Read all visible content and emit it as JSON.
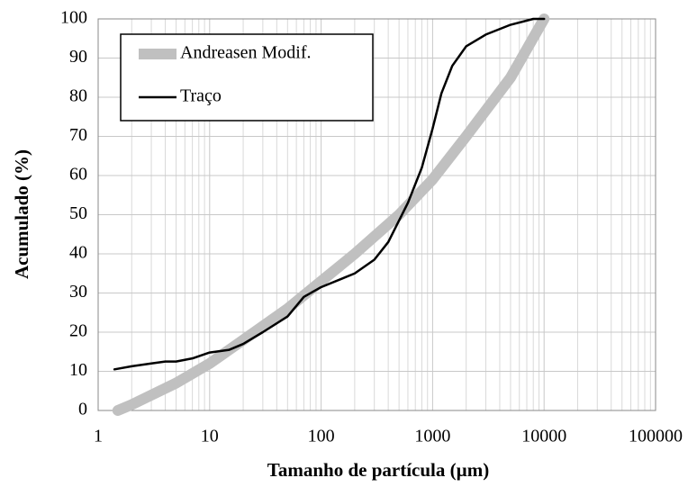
{
  "chart_data": {
    "type": "line",
    "xlabel": "Tamanho  de partícula (µm)",
    "ylabel": "Acumulado (%)",
    "xscale": "log",
    "xlim": [
      1,
      100000
    ],
    "xticks": [
      1,
      10,
      100,
      1000,
      10000,
      100000
    ],
    "ylim": [
      0,
      100
    ],
    "yticks": [
      0,
      10,
      20,
      30,
      40,
      50,
      60,
      70,
      80,
      90,
      100
    ],
    "grid": true,
    "minor_grid": true,
    "legend": "upper left",
    "series": [
      {
        "name": "Andreasen Modif.",
        "color": "#c0c0c0",
        "x": [
          1.5,
          2,
          5,
          10,
          20,
          50,
          100,
          200,
          500,
          1000,
          2000,
          5000,
          10000
        ],
        "values": [
          0,
          1.5,
          7,
          12,
          18,
          26,
          33,
          40,
          50,
          59,
          70,
          85,
          100
        ]
      },
      {
        "name": "Traço",
        "color": "#000000",
        "x": [
          1.4,
          2,
          3,
          4,
          5,
          7,
          10,
          15,
          20,
          30,
          50,
          70,
          100,
          200,
          300,
          400,
          600,
          800,
          1000,
          1200,
          1500,
          2000,
          3000,
          5000,
          8000,
          10000
        ],
        "values": [
          10.5,
          11.3,
          12,
          12.5,
          12.5,
          13.3,
          14.8,
          15.5,
          17,
          20,
          24,
          29,
          31.5,
          35,
          38.5,
          43,
          53,
          62,
          72,
          81,
          88,
          93,
          96,
          98.5,
          100,
          100
        ]
      }
    ]
  }
}
